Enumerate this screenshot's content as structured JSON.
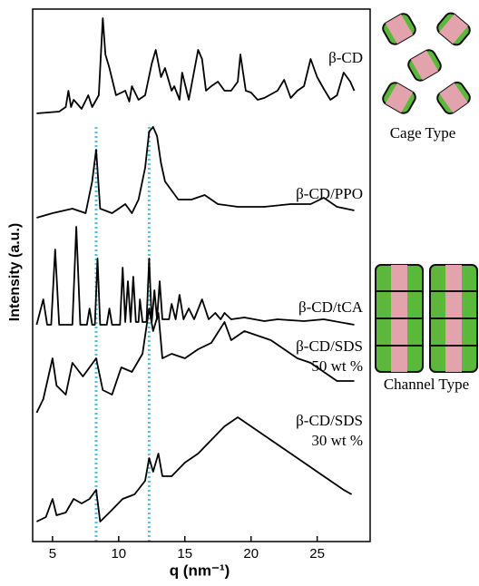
{
  "chart_data": {
    "type": "line",
    "xlabel": "q (nm⁻¹)",
    "ylabel": "Intensity (a.u.)",
    "xlim": [
      3.5,
      29
    ],
    "xticks": [
      5,
      10,
      15,
      20,
      25
    ],
    "ylim": [
      0,
      587
    ],
    "vlines": [
      8.3,
      12.3
    ],
    "vline_color": "#4fc3d9",
    "side_labels": [
      "Cage Type",
      "Channel Type"
    ],
    "series": [
      {
        "name": "β-CD",
        "color": "#000000",
        "x": [
          3.8,
          5.5,
          6.0,
          6.2,
          6.4,
          6.6,
          7.2,
          7.7,
          8.0,
          8.5,
          8.8,
          9.0,
          9.3,
          9.8,
          10.5,
          10.8,
          11.0,
          11.5,
          12.0,
          12.5,
          12.8,
          13.2,
          13.5,
          14.0,
          14.2,
          14.6,
          14.8,
          15.3,
          16.0,
          16.3,
          16.6,
          17.0,
          17.5,
          18.0,
          18.5,
          19.0,
          19.2,
          19.6,
          20.0,
          20.5,
          21.0,
          22.0,
          22.5,
          23.0,
          23.5,
          24.0,
          24.5,
          25.0,
          25.5,
          26.0,
          26.5,
          27.0,
          27.5,
          27.8
        ],
        "values": [
          472,
          474,
          479,
          497,
          479,
          487,
          477,
          492,
          479,
          492,
          577,
          537,
          522,
          492,
          497,
          485,
          502,
          487,
          492,
          527,
          542,
          512,
          522,
          497,
          502,
          487,
          517,
          487,
          542,
          532,
          497,
          502,
          507,
          497,
          497,
          507,
          537,
          497,
          495,
          487,
          489,
          497,
          509,
          489,
          497,
          502,
          532,
          512,
          499,
          487,
          492,
          517,
          507,
          497
        ]
      },
      {
        "name": "β-CD/PPO",
        "color": "#000000",
        "x": [
          3.8,
          5.0,
          6.5,
          7.5,
          8.0,
          8.3,
          8.6,
          9.5,
          10.5,
          11.0,
          11.5,
          12.0,
          12.3,
          12.6,
          12.9,
          13.2,
          13.5,
          14.0,
          14.5,
          15.5,
          16.5,
          17.5,
          19.0,
          21.0,
          23.0,
          24.5,
          25.5,
          26.5,
          27.8
        ],
        "values": [
          357,
          362,
          367,
          362,
          397,
          432,
          367,
          362,
          372,
          362,
          377,
          412,
          452,
          457,
          447,
          417,
          397,
          387,
          377,
          377,
          382,
          372,
          369,
          369,
          372,
          372,
          379,
          369,
          365
        ]
      },
      {
        "name": "β-CD/tCA",
        "color": "#000000",
        "x": [
          3.8,
          4.3,
          4.6,
          4.9,
          5.2,
          5.5,
          6.5,
          6.8,
          7.1,
          7.6,
          7.8,
          8.0,
          8.2,
          8.4,
          8.6,
          9.1,
          9.3,
          9.5,
          10.1,
          10.3,
          10.5,
          10.7,
          10.9,
          11.1,
          11.3,
          11.5,
          11.6,
          11.8,
          12.1,
          12.3,
          12.5,
          12.7,
          12.9,
          13.1,
          13.3,
          13.8,
          14.0,
          14.3,
          14.6,
          14.9,
          15.3,
          15.7,
          16.3,
          16.8,
          17.3,
          17.7,
          18.0,
          18.5,
          19.5,
          21.0,
          22.0,
          24.0,
          25.5,
          27.8
        ],
        "values": [
          239,
          267,
          239,
          239,
          322,
          239,
          239,
          347,
          239,
          239,
          257,
          239,
          239,
          312,
          239,
          239,
          257,
          239,
          239,
          302,
          242,
          287,
          242,
          292,
          242,
          242,
          267,
          242,
          242,
          312,
          242,
          277,
          245,
          287,
          245,
          245,
          262,
          245,
          272,
          245,
          257,
          245,
          267,
          245,
          252,
          245,
          252,
          245,
          247,
          243,
          245,
          243,
          245,
          239
        ]
      },
      {
        "name": "β-CD/SDS",
        "subname": "50 wt %",
        "color": "#000000",
        "x": [
          3.8,
          4.3,
          5.0,
          5.3,
          6.0,
          6.5,
          7.3,
          8.3,
          8.8,
          9.5,
          10.2,
          11.0,
          11.8,
          12.3,
          12.6,
          13.0,
          13.3,
          14.0,
          15.0,
          16.0,
          17.0,
          18.0,
          18.5,
          19.5,
          20.5,
          21.5,
          22.5,
          23.5,
          24.5,
          25.5,
          26.5,
          27.8
        ],
        "values": [
          142,
          157,
          202,
          172,
          162,
          197,
          182,
          202,
          167,
          162,
          192,
          187,
          207,
          257,
          232,
          252,
          202,
          207,
          202,
          212,
          219,
          242,
          222,
          232,
          227,
          222,
          212,
          202,
          197,
          187,
          177,
          177
        ]
      },
      {
        "name": "β-CD/SDS",
        "subname": "30 wt %",
        "color": "#000000",
        "x": [
          3.8,
          4.5,
          5.0,
          5.3,
          6.0,
          6.6,
          7.2,
          7.8,
          8.3,
          8.6,
          9.3,
          10.3,
          11.2,
          12.0,
          12.3,
          12.6,
          13.0,
          13.3,
          14.0,
          15.0,
          16.0,
          17.0,
          18.0,
          19.0,
          20.0,
          21.0,
          22.0,
          23.0,
          24.0,
          25.0,
          26.0,
          27.0,
          27.6
        ],
        "values": [
          22,
          27,
          47,
          29,
          32,
          47,
          42,
          47,
          57,
          22,
          32,
          47,
          52,
          67,
          92,
          77,
          97,
          72,
          72,
          87,
          97,
          112,
          127,
          137,
          127,
          117,
          107,
          97,
          87,
          77,
          67,
          57,
          52
        ]
      }
    ]
  }
}
